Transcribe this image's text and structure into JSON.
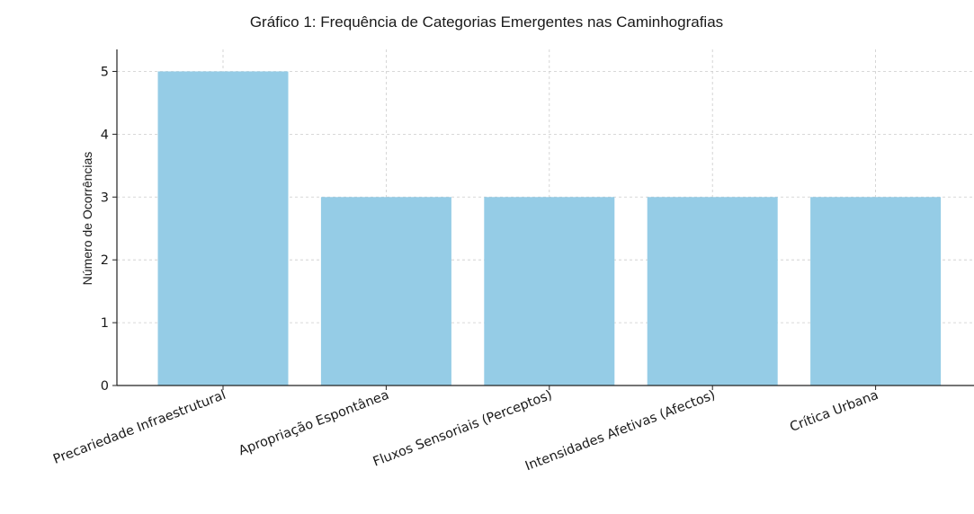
{
  "chart_data": {
    "type": "bar",
    "title": "Gráfico 1: Frequência de Categorias Emergentes nas Caminhografias",
    "xlabel": "",
    "ylabel": "Número de Ocorrências",
    "categories": [
      "Precariedade Infraestrutural",
      "Apropriação Espontânea",
      "Fluxos Sensoriais (Perceptos)",
      "Intensidades Afetivas (Afectos)",
      "Crítica Urbana"
    ],
    "values": [
      5,
      3,
      3,
      3,
      3
    ],
    "ylim": [
      0,
      5.35
    ],
    "yticks": [
      0,
      1,
      2,
      3,
      4,
      5
    ],
    "grid": true,
    "legend": "none",
    "bar_color": "#95cce6",
    "grid_color": "#cccccc",
    "axis_color": "#222222"
  }
}
